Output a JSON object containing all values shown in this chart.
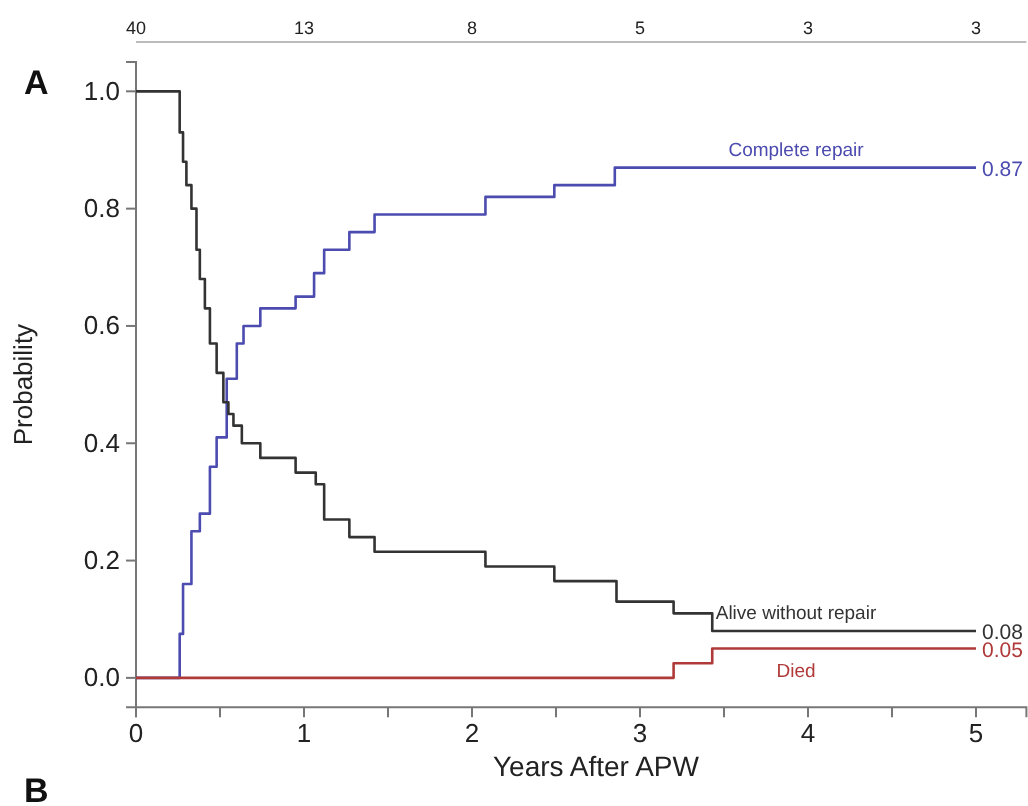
{
  "chart_data": {
    "type": "step",
    "title": "A",
    "xlabel": "Years After APW",
    "ylabel": "Probability",
    "xlim": [
      0,
      5.3
    ],
    "ylim": [
      -0.05,
      1.05
    ],
    "xticks": [
      0,
      {
        "value": 0.5,
        "label": null
      },
      1,
      {
        "value": 1.5,
        "label": null
      },
      2,
      {
        "value": 2.5,
        "label": null
      },
      3,
      {
        "value": 3.5,
        "label": null
      },
      4,
      {
        "value": 4.5,
        "label": null
      },
      5
    ],
    "yticks": [
      {
        "value": 0,
        "label": "0.0"
      },
      0.2,
      0.4,
      0.6,
      0.8,
      {
        "value": 1,
        "label": "1.0"
      }
    ],
    "grid": false,
    "marker": "none",
    "line_style": "solid",
    "series": [
      {
        "name": "Complete repair",
        "color": "#4b4bb0",
        "x": [
          0,
          0.26,
          0.28,
          0.33,
          0.38,
          0.44,
          0.48,
          0.54,
          0.6,
          0.64,
          0.74,
          0.95,
          1.06,
          1.12,
          1.27,
          1.42,
          2.08,
          2.49,
          2.85,
          5.0
        ],
        "values": [
          0,
          0.075,
          0.16,
          0.25,
          0.28,
          0.36,
          0.41,
          0.51,
          0.57,
          0.6,
          0.63,
          0.65,
          0.69,
          0.73,
          0.76,
          0.79,
          0.82,
          0.84,
          0.87,
          0.87
        ],
        "value_labels": [
          null,
          null,
          null,
          null,
          null,
          null,
          null,
          null,
          null,
          null,
          null,
          null,
          null,
          null,
          null,
          null,
          null,
          null,
          null,
          "0.87"
        ]
      },
      {
        "name": "Alive without repair",
        "color": "#333333",
        "x": [
          0,
          0.26,
          0.28,
          0.3,
          0.33,
          0.36,
          0.38,
          0.41,
          0.44,
          0.48,
          0.52,
          0.55,
          0.58,
          0.63,
          0.74,
          0.95,
          1.07,
          1.12,
          1.27,
          1.42,
          2.08,
          2.49,
          2.86,
          3.2,
          3.43,
          5.0
        ],
        "values": [
          1,
          0.93,
          0.88,
          0.84,
          0.8,
          0.73,
          0.68,
          0.63,
          0.57,
          0.52,
          0.47,
          0.45,
          0.43,
          0.4,
          0.375,
          0.35,
          0.33,
          0.27,
          0.24,
          0.215,
          0.19,
          0.165,
          0.13,
          0.11,
          0.08,
          0.08
        ],
        "value_labels": [
          null,
          null,
          null,
          null,
          null,
          null,
          null,
          null,
          null,
          null,
          null,
          null,
          null,
          null,
          null,
          null,
          null,
          null,
          null,
          null,
          null,
          null,
          null,
          null,
          null,
          "0.08"
        ]
      },
      {
        "name": "Died",
        "color": "#b03a3a",
        "x": [
          0,
          3.2,
          3.43,
          5.0
        ],
        "values": [
          0,
          0.025,
          0.05,
          0.05
        ],
        "value_labels": [
          null,
          null,
          null,
          "0.05"
        ]
      }
    ],
    "annotations": [
      "40",
      "13",
      "8",
      "5",
      "3",
      "3",
      "B"
    ]
  }
}
